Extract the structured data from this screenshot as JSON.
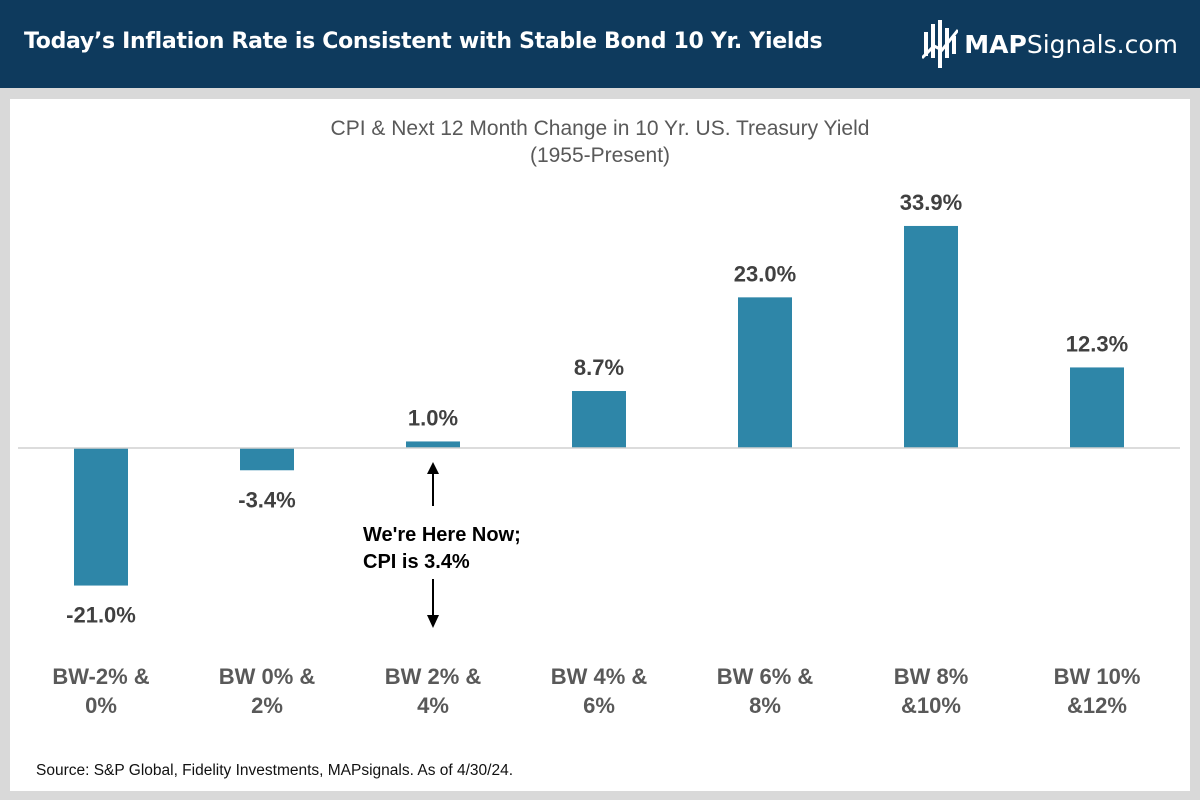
{
  "header": {
    "title": "Today’s Inflation Rate is Consistent with Stable Bond 10 Yr. Yields",
    "logo_bold": "MAP",
    "logo_regular": "Signals.com"
  },
  "colors": {
    "header_bg": "#0e3a5d",
    "bar": "#2e86a8",
    "text": "#404040"
  },
  "chart_data": {
    "type": "bar",
    "title": "CPI & Next 12 Month Change in 10 Yr. US. Treasury Yield",
    "subtitle": "(1955-Present)",
    "categories": [
      [
        "BW-2% &",
        "0%"
      ],
      [
        "BW 0% &",
        "2%"
      ],
      [
        "BW 2% &",
        "4%"
      ],
      [
        "BW 4% &",
        "6%"
      ],
      [
        "BW 6% &",
        "8%"
      ],
      [
        "BW 8%",
        "&10%"
      ],
      [
        "BW 10%",
        "&12%"
      ]
    ],
    "values": [
      -21.0,
      -3.4,
      1.0,
      8.7,
      23.0,
      33.9,
      12.3
    ],
    "data_labels": [
      "-21.0%",
      "-3.4%",
      "1.0%",
      "8.7%",
      "23.0%",
      "33.9%",
      "12.3%"
    ],
    "ylim": [
      -28,
      40
    ],
    "annotation": {
      "category_index": 2,
      "lines": [
        "We're Here Now;",
        "CPI is 3.4%"
      ]
    }
  },
  "source": "Source: S&P Global, Fidelity Investments, MAPsignals. As of 4/30/24."
}
